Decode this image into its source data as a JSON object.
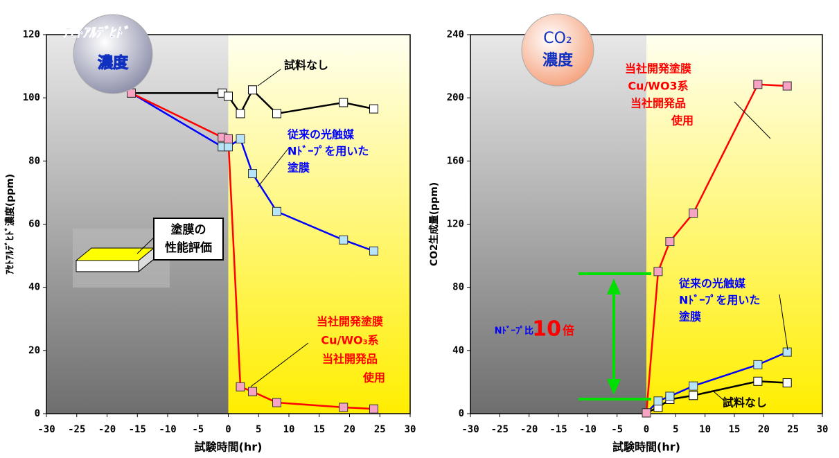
{
  "chart_data": [
    {
      "type": "line",
      "badge": [
        "ｱｾﾄｱﾙﾃﾞﾋﾄﾞ",
        "濃度"
      ],
      "inset": [
        "塗膜の",
        "性能評価"
      ],
      "ylabel": "ｱｾﾄｱﾙﾃﾞﾋﾄﾞ濃度(ppm)",
      "xlabel": "試験時間(hr)",
      "xlim": [
        -30,
        30
      ],
      "xticks": [
        -30,
        -25,
        -20,
        -15,
        -10,
        -5,
        0,
        5,
        10,
        15,
        20,
        25,
        30
      ],
      "ylim": [
        0,
        120
      ],
      "yticks": [
        0,
        20,
        40,
        60,
        80,
        100,
        120
      ],
      "series": [
        {
          "name": [
            "試料なし"
          ],
          "color": "#000000",
          "marker_color": "#ffffff",
          "label_color": "#000000",
          "x": [
            -16,
            -1,
            0,
            2,
            4,
            8,
            19,
            24
          ],
          "values": [
            101.5,
            101.5,
            100.5,
            95,
            102.5,
            95,
            98.5,
            96.5
          ]
        },
        {
          "name": [
            "従来の光触媒",
            "Nﾄﾞｰﾌﾟを用いた",
            "塗膜"
          ],
          "color": "#0000ff",
          "marker_color": "#b8e4fa",
          "label_color": "#0000ff",
          "x": [
            -16,
            -1,
            0,
            2,
            4,
            8,
            19,
            24
          ],
          "values": [
            101.5,
            84.5,
            84.5,
            87,
            76,
            64,
            55,
            51.5
          ]
        },
        {
          "name": [
            "当社開発塗膜",
            "Cu/WO₃系",
            "当社開発品",
            "使用"
          ],
          "color": "#ff0000",
          "marker_color": "#f7a3c4",
          "label_color": "#ff0000",
          "x": [
            -16,
            -1,
            0,
            2,
            4,
            8,
            19,
            24
          ],
          "values": [
            101.5,
            87.5,
            87,
            8.5,
            7,
            3.5,
            2,
            1.5
          ]
        }
      ]
    },
    {
      "type": "line",
      "badge": [
        "CO₂",
        "濃度"
      ],
      "ratio_label": [
        "Nﾄﾞｰﾌﾟ比",
        "10",
        "倍"
      ],
      "ylabel": "CO2生成量(ppm)",
      "xlabel": "試験時間(hr)",
      "xlim": [
        -30,
        30
      ],
      "xticks": [
        -30,
        -25,
        -20,
        -15,
        -10,
        -5,
        0,
        5,
        10,
        15,
        20,
        25,
        30
      ],
      "ylim": [
        0,
        240
      ],
      "yticks": [
        0,
        40,
        80,
        120,
        160,
        200,
        240
      ],
      "series": [
        {
          "name": [
            "試料なし"
          ],
          "color": "#000000",
          "marker_color": "#ffffff",
          "label_color": "#000000",
          "x": [
            0,
            2,
            4,
            8,
            19,
            24
          ],
          "values": [
            0.5,
            4,
            9,
            11.5,
            20.5,
            19.5
          ]
        },
        {
          "name": [
            "従来の光触媒",
            "Nﾄﾞｰﾌﾟを用いた",
            "塗膜"
          ],
          "color": "#0000ff",
          "marker_color": "#b8e4fa",
          "label_color": "#0000ff",
          "x": [
            0,
            2,
            4,
            8,
            19,
            24
          ],
          "values": [
            0.5,
            8,
            11,
            17.5,
            31,
            39
          ]
        },
        {
          "name": [
            "当社開発塗膜",
            "Cu/WO3系",
            "当社開発品",
            "使用"
          ],
          "color": "#ff0000",
          "marker_color": "#f7a3c4",
          "label_color": "#ff0000",
          "x": [
            0,
            2,
            4,
            8,
            19,
            24
          ],
          "values": [
            0.5,
            90,
            109,
            127,
            208.5,
            207.5
          ]
        }
      ]
    }
  ]
}
